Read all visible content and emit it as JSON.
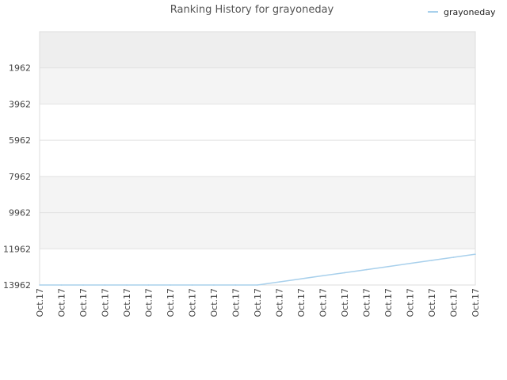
{
  "chart_data": {
    "type": "line",
    "title": "Ranking History for grayoneday",
    "xlabel": "",
    "ylabel": "",
    "y_inverted": true,
    "ylim": [
      13962,
      -38
    ],
    "y_ticks": [
      1962,
      3962,
      5962,
      7962,
      9962,
      11962,
      13962
    ],
    "categories": [
      "Oct.17",
      "Oct.17",
      "Oct.17",
      "Oct.17",
      "Oct.17",
      "Oct.17",
      "Oct.17",
      "Oct.17",
      "Oct.17",
      "Oct.17",
      "Oct.17",
      "Oct.17",
      "Oct.17",
      "Oct.17",
      "Oct.17",
      "Oct.17",
      "Oct.17",
      "Oct.17",
      "Oct.17",
      "Oct.17",
      "Oct.17"
    ],
    "series": [
      {
        "name": "grayoneday",
        "color": "#a8d0ec",
        "values": [
          13962,
          13962,
          13962,
          13962,
          13962,
          13962,
          13962,
          13962,
          13962,
          13962,
          13962,
          13792,
          13622,
          13452,
          13282,
          13112,
          12942,
          12772,
          12602,
          12432,
          12262
        ]
      }
    ],
    "legend_position": "top-right",
    "grid": true,
    "band_colors": [
      "#eeeeee",
      "#f4f4f4",
      "#ffffff"
    ]
  }
}
